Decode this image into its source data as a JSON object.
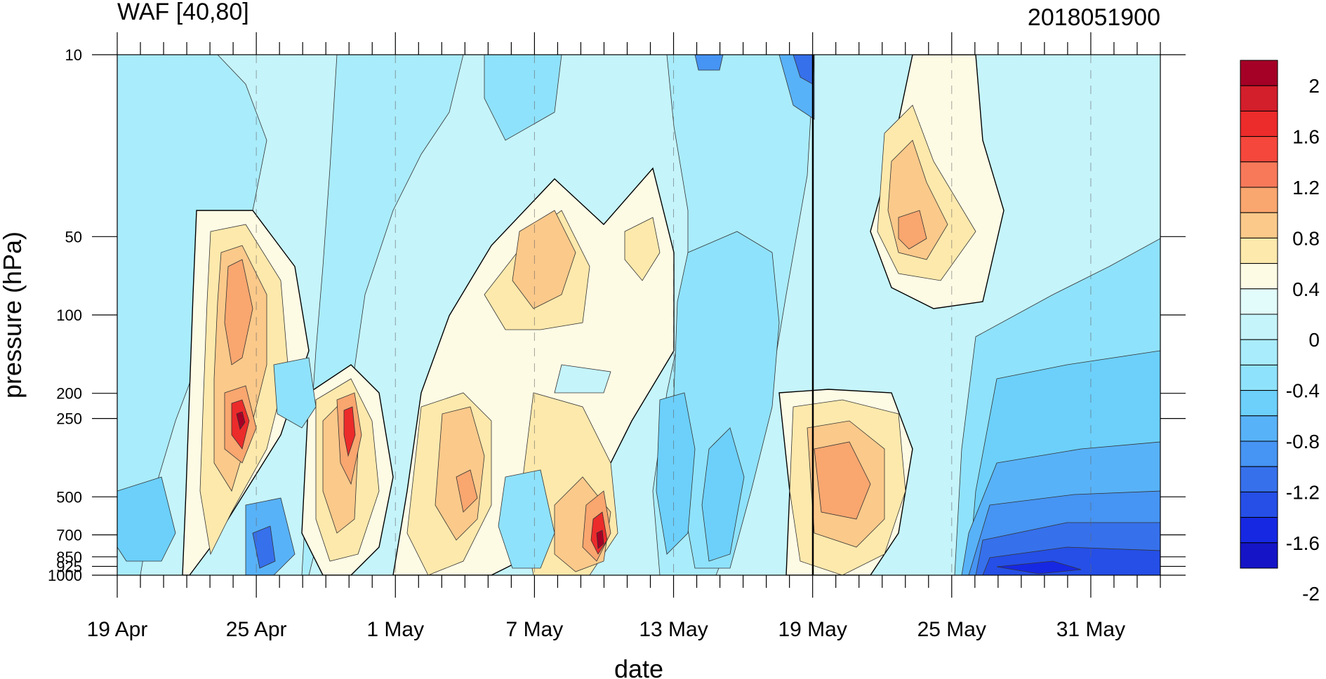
{
  "chart_data": {
    "type": "heatmap",
    "title_left": "WAF [40,80]",
    "title_right": "2018051900",
    "xlabel": "date",
    "ylabel": "pressure (hPa)",
    "x_tick_labels": [
      "19 Apr",
      "25 Apr",
      "1 May",
      "7 May",
      "13 May",
      "19 May",
      "25 May",
      "31 May"
    ],
    "y_tick_labels": [
      "10",
      "50",
      "100",
      "200",
      "250",
      "500",
      "700",
      "850",
      "925",
      "1000"
    ],
    "y_scale": "log",
    "x_range": [
      "2018-04-19",
      "2018-06-03"
    ],
    "y_range_hPa": [
      1000,
      10
    ],
    "current_time_marker": "19 May",
    "colorbar_labels": [
      "2",
      "1.6",
      "1.2",
      "0.8",
      "0.4",
      "0",
      "-0.4",
      "-0.8",
      "-1.2",
      "-1.6",
      "-2"
    ],
    "colorbar_colors": [
      "#a50026",
      "#d31e2b",
      "#ec2b2b",
      "#f5473c",
      "#f8795a",
      "#f9a66f",
      "#fbc98a",
      "#fde9ac",
      "#fefbe5",
      "#e2fbfb",
      "#c5f4fb",
      "#a9ecfb",
      "#8fe2fb",
      "#6cd0fb",
      "#58b2f8",
      "#4694f3",
      "#3670eb",
      "#254fe6",
      "#1728e3",
      "#1515c7"
    ],
    "series": [
      {
        "region": "lower stratosphere, late April",
        "date": "24 Apr",
        "pressure": 100,
        "value": 1.2
      },
      {
        "region": "upper troposphere, late April",
        "date": "24 Apr",
        "pressure": 250,
        "value": 1.6
      },
      {
        "region": "upper troposphere, end April",
        "date": "28 Apr",
        "pressure": 250,
        "value": 1.6
      },
      {
        "region": "mid troposphere, early May",
        "date": "4 May",
        "pressure": 500,
        "value": 1.2
      },
      {
        "region": "stratosphere, early May",
        "date": "7 May",
        "pressure": 50,
        "value": 0.8
      },
      {
        "region": "lower troposphere, mid May",
        "date": "10 May",
        "pressure": 850,
        "value": 1.6
      },
      {
        "region": "troposphere, 19 May",
        "date": "20 May",
        "pressure": 500,
        "value": 1.2
      },
      {
        "region": "stratosphere, late May",
        "date": "24 May",
        "pressure": 50,
        "value": 1.2
      },
      {
        "region": "upper stratosphere, mid May",
        "date": "18 May",
        "pressure": 10,
        "value": -1.2
      },
      {
        "region": "lower troposphere, early June",
        "date": "1 Jun",
        "pressure": 1000,
        "value": -2.0
      }
    ]
  }
}
